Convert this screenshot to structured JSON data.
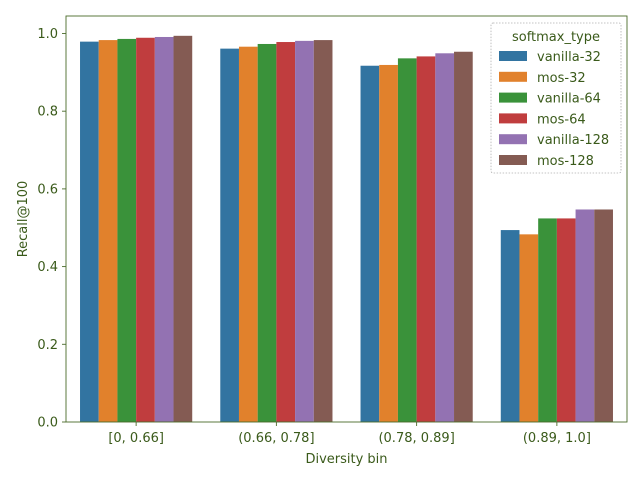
{
  "chart_data": {
    "type": "bar",
    "xlabel": "Diversity bin",
    "ylabel": "Recall@100",
    "ylim": [
      0,
      1.045
    ],
    "yticks": [
      "0.0",
      "0.2",
      "0.4",
      "0.6",
      "0.8",
      "1.0"
    ],
    "grid": false,
    "legend_position": "top-right",
    "legend_title": "softmax_type",
    "categories": [
      "[0, 0.66]",
      "(0.66, 0.78]",
      "(0.78, 0.89]",
      "(0.89, 1.0]"
    ],
    "series": [
      {
        "name": "vanilla-32",
        "color": "#3274a1",
        "values": [
          0.979,
          0.961,
          0.917,
          0.494
        ]
      },
      {
        "name": "mos-32",
        "color": "#e1812c",
        "values": [
          0.983,
          0.966,
          0.919,
          0.483
        ]
      },
      {
        "name": "vanilla-64",
        "color": "#3a923a",
        "values": [
          0.986,
          0.973,
          0.936,
          0.524
        ]
      },
      {
        "name": "mos-64",
        "color": "#c03d3e",
        "values": [
          0.989,
          0.978,
          0.941,
          0.524
        ]
      },
      {
        "name": "vanilla-128",
        "color": "#9372b2",
        "values": [
          0.991,
          0.981,
          0.949,
          0.547
        ]
      },
      {
        "name": "mos-128",
        "color": "#845b53",
        "values": [
          0.994,
          0.983,
          0.953,
          0.547
        ]
      }
    ],
    "colors": {
      "axis": "#4a6b2a",
      "text": "#3a5a1a"
    }
  }
}
